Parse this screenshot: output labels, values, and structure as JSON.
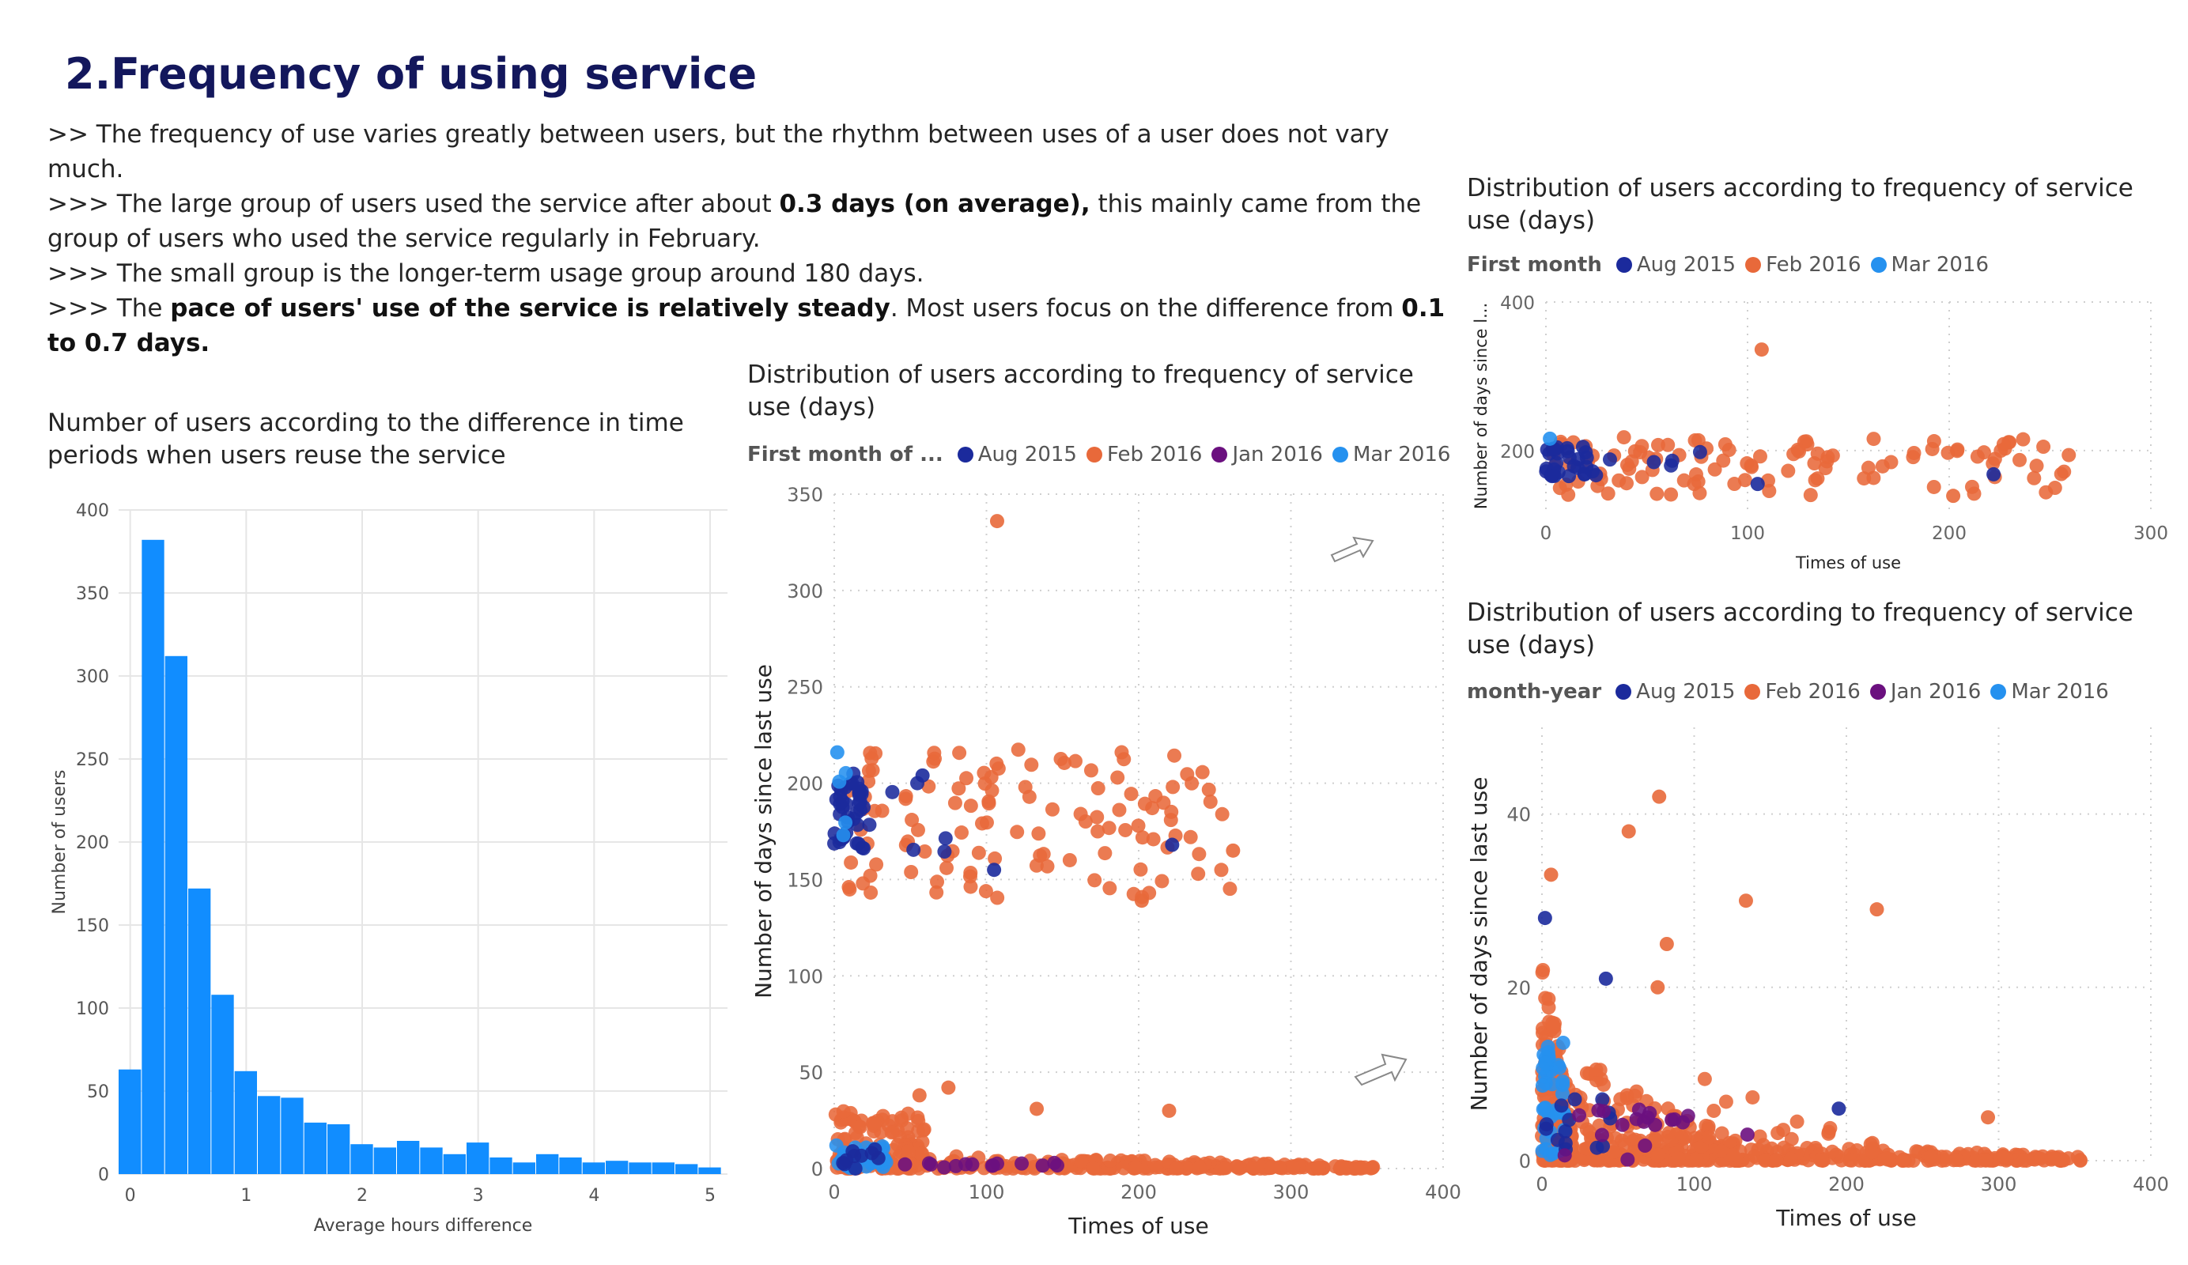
{
  "page": {
    "title": "2.Frequency of using service",
    "notes": [
      [
        {
          "t": ">> The frequency of use varies greatly between users, but the rhythm between uses of a user does not vary much."
        }
      ],
      [
        {
          "t": ">>> The large group of users used the service after about "
        },
        {
          "t": "0.3 days (on average),",
          "b": true
        },
        {
          "t": " this mainly came from the group of users who used the service regularly in February."
        }
      ],
      [
        {
          "t": ">>> The small group is the longer-term usage group around 180 days."
        }
      ],
      [
        {
          "t": ">>> The "
        },
        {
          "t": "pace of users' use of the service is relatively steady",
          "b": true
        },
        {
          "t": ". Most users focus on the difference from "
        },
        {
          "t": "0.1 to 0.7 days.",
          "b": true
        }
      ]
    ]
  },
  "colors": {
    "bar": "#118dff",
    "aug_2015": "#1b2a9c",
    "feb_2016": "#e8693a",
    "jan_2016": "#6b107f",
    "mar_2016": "#2591ef"
  },
  "chart_data": [
    {
      "id": "histogram",
      "type": "bar",
      "title": "Number of users according to the difference in time periods when users reuse the service",
      "xlabel": "Average hours difference",
      "ylabel": "Number of users",
      "xlim": [
        -0.1,
        5.15
      ],
      "ylim": [
        0,
        400
      ],
      "xticks": [
        0,
        1,
        2,
        3,
        4,
        5
      ],
      "yticks": [
        0,
        50,
        100,
        150,
        200,
        250,
        300,
        350,
        400
      ],
      "bin_start": -0.1,
      "bin_width": 0.2,
      "values": [
        63,
        382,
        312,
        172,
        108,
        62,
        47,
        46,
        31,
        30,
        18,
        16,
        20,
        16,
        12,
        19,
        10,
        7,
        12,
        10,
        7,
        8,
        7,
        7,
        6,
        4
      ],
      "grid": true
    },
    {
      "id": "scatter-main",
      "type": "scatter",
      "title": "Distribution of users according to frequency of service use (days)",
      "legend_title": "First month of ...",
      "series_names": [
        "Aug 2015",
        "Feb 2016",
        "Jan 2016",
        "Mar 2016"
      ],
      "xlabel": "Times of use",
      "ylabel": "Number of days since last use",
      "xlim": [
        0,
        400
      ],
      "ylim": [
        0,
        350
      ],
      "xticks": [
        0,
        100,
        200,
        300,
        400
      ],
      "yticks": [
        0,
        50,
        100,
        150,
        200,
        250,
        300,
        350
      ],
      "grid": true,
      "clusters": [
        {
          "series": 1,
          "x": [
            0,
            265
          ],
          "y": [
            140,
            218
          ],
          "n": 120,
          "seed": 11
        },
        {
          "series": 0,
          "x": [
            0,
            20
          ],
          "y": [
            165,
            205
          ],
          "n": 40,
          "seed": 12
        },
        {
          "series": 0,
          "x": [
            20,
            80
          ],
          "y": [
            160,
            205
          ],
          "n": 6,
          "seed": 13
        },
        {
          "series": 3,
          "x": [
            0,
            8
          ],
          "y": [
            170,
            215
          ],
          "n": 4,
          "seed": 14
        },
        {
          "series": 1,
          "x": [
            0,
            355
          ],
          "y": [
            0,
            8
          ],
          "n": 260,
          "seed": 15,
          "decay": true
        },
        {
          "series": 1,
          "x": [
            0,
            60
          ],
          "y": [
            0,
            30
          ],
          "n": 90,
          "seed": 16
        },
        {
          "series": 3,
          "x": [
            0,
            35
          ],
          "y": [
            0,
            12
          ],
          "n": 40,
          "seed": 17
        },
        {
          "series": 2,
          "x": [
            40,
            150
          ],
          "y": [
            0,
            3
          ],
          "n": 14,
          "seed": 18
        },
        {
          "series": 0,
          "x": [
            0,
            30
          ],
          "y": [
            0,
            10
          ],
          "n": 10,
          "seed": 19
        }
      ],
      "points": [
        {
          "series": 1,
          "x": 107,
          "y": 336
        },
        {
          "series": 1,
          "x": 75,
          "y": 42
        },
        {
          "series": 1,
          "x": 56,
          "y": 38
        },
        {
          "series": 1,
          "x": 133,
          "y": 31
        },
        {
          "series": 1,
          "x": 220,
          "y": 30
        },
        {
          "series": 0,
          "x": 222,
          "y": 168
        },
        {
          "series": 0,
          "x": 105,
          "y": 155
        },
        {
          "series": 1,
          "x": 202,
          "y": 139
        },
        {
          "series": 1,
          "x": 262,
          "y": 165
        },
        {
          "series": 0,
          "x": 58,
          "y": 204
        },
        {
          "series": 3,
          "x": 2,
          "y": 216
        }
      ]
    },
    {
      "id": "scatter-top",
      "type": "scatter",
      "title": "Distribution of users according to frequency of service use (days)",
      "legend_title": "First month",
      "series_names": [
        "Aug 2015",
        "Feb 2016",
        "Mar 2016"
      ],
      "xlabel": "Times of use",
      "ylabel": "Number of days since l...",
      "xlim": [
        0,
        300
      ],
      "ylim": [
        120,
        400
      ],
      "xticks": [
        0,
        100,
        200,
        300
      ],
      "yticks": [
        200,
        400
      ],
      "grid": true,
      "clusters": [
        {
          "series": 1,
          "x": [
            0,
            260
          ],
          "y": [
            140,
            218
          ],
          "n": 110,
          "seed": 21
        },
        {
          "series": 0,
          "x": [
            0,
            25
          ],
          "y": [
            165,
            205
          ],
          "n": 30,
          "seed": 22
        },
        {
          "series": 0,
          "x": [
            25,
            80
          ],
          "y": [
            160,
            205
          ],
          "n": 5,
          "seed": 23
        }
      ],
      "points": [
        {
          "series": 1,
          "x": 107,
          "y": 336
        },
        {
          "series": 0,
          "x": 222,
          "y": 168
        },
        {
          "series": 0,
          "x": 105,
          "y": 155
        },
        {
          "series": 1,
          "x": 202,
          "y": 139
        },
        {
          "series": 2,
          "x": 2,
          "y": 216
        }
      ]
    },
    {
      "id": "scatter-bottom",
      "type": "scatter",
      "title": "Distribution of users according to frequency of service use (days)",
      "legend_title": "month-year",
      "series_names": [
        "Aug 2015",
        "Feb 2016",
        "Jan 2016",
        "Mar 2016"
      ],
      "xlabel": "Times of use",
      "ylabel": "Number of days since last use",
      "xlim": [
        0,
        400
      ],
      "ylim": [
        0,
        50
      ],
      "xticks": [
        0,
        100,
        200,
        300,
        400
      ],
      "yticks": [
        0,
        20,
        40
      ],
      "grid": true,
      "clusters": [
        {
          "series": 1,
          "x": [
            0,
            20
          ],
          "y": [
            0,
            25
          ],
          "n": 160,
          "seed": 31,
          "decay": true
        },
        {
          "series": 1,
          "x": [
            0,
            130
          ],
          "y": [
            0,
            14
          ],
          "n": 220,
          "seed": 32,
          "decay": true
        },
        {
          "series": 1,
          "x": [
            0,
            355
          ],
          "y": [
            0,
            3
          ],
          "n": 240,
          "seed": 33,
          "decay": true
        },
        {
          "series": 1,
          "x": [
            100,
            240
          ],
          "y": [
            0,
            10
          ],
          "n": 40,
          "seed": 34,
          "decay": true
        },
        {
          "series": 3,
          "x": [
            0,
            15
          ],
          "y": [
            0,
            14
          ],
          "n": 40,
          "seed": 35
        },
        {
          "series": 0,
          "x": [
            0,
            45
          ],
          "y": [
            0,
            8
          ],
          "n": 14,
          "seed": 36
        },
        {
          "series": 2,
          "x": [
            0,
            100
          ],
          "y": [
            0,
            6
          ],
          "n": 18,
          "seed": 37
        }
      ],
      "points": [
        {
          "series": 1,
          "x": 77,
          "y": 42
        },
        {
          "series": 1,
          "x": 57,
          "y": 38
        },
        {
          "series": 1,
          "x": 134,
          "y": 30
        },
        {
          "series": 1,
          "x": 220,
          "y": 29
        },
        {
          "series": 1,
          "x": 6,
          "y": 33
        },
        {
          "series": 1,
          "x": 82,
          "y": 25
        },
        {
          "series": 1,
          "x": 76,
          "y": 20
        },
        {
          "series": 0,
          "x": 2,
          "y": 28
        },
        {
          "series": 0,
          "x": 42,
          "y": 21
        },
        {
          "series": 0,
          "x": 195,
          "y": 6
        },
        {
          "series": 2,
          "x": 135,
          "y": 3
        },
        {
          "series": 1,
          "x": 293,
          "y": 5
        }
      ]
    }
  ]
}
